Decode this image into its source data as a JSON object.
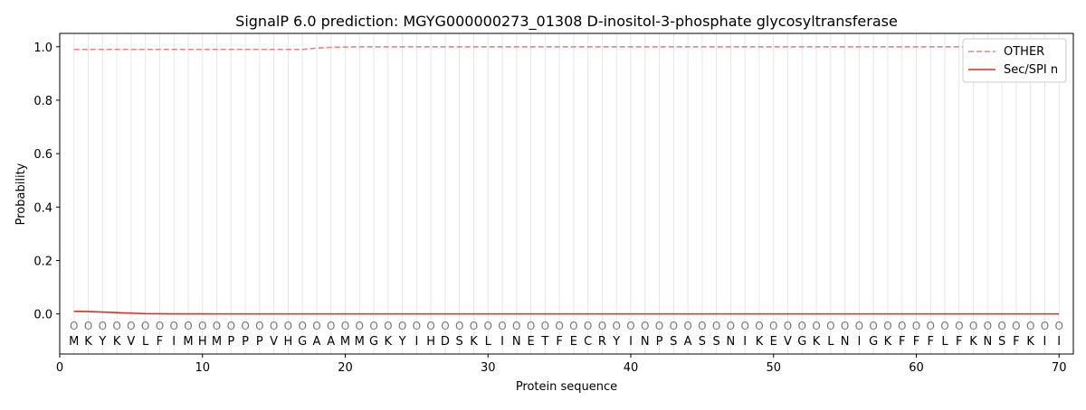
{
  "chart_data": {
    "type": "line",
    "title": "SignalP 6.0 prediction: MGYG000000273_01308 D-inositol-3-phosphate glycosyltransferase",
    "xlabel": "Protein sequence",
    "ylabel": "Probability",
    "xlim": [
      0,
      71
    ],
    "ylim": [
      -0.15,
      1.05
    ],
    "xticks": [
      0,
      10,
      20,
      30,
      40,
      50,
      60,
      70
    ],
    "yticks": [
      0.0,
      0.2,
      0.4,
      0.6,
      0.8,
      1.0
    ],
    "ytick_labels": [
      "0.0",
      "0.2",
      "0.4",
      "0.6",
      "0.8",
      "1.0"
    ],
    "grid": "vertical lines at each residue",
    "legend_position": "top-right",
    "sequence": [
      "M",
      "K",
      "Y",
      "K",
      "V",
      "L",
      "F",
      "I",
      "M",
      "H",
      "M",
      "P",
      "P",
      "P",
      "V",
      "H",
      "G",
      "A",
      "A",
      "M",
      "M",
      "G",
      "K",
      "Y",
      "I",
      "H",
      "D",
      "S",
      "K",
      "L",
      "I",
      "N",
      "E",
      "T",
      "F",
      "E",
      "C",
      "R",
      "Y",
      "I",
      "N",
      "P",
      "S",
      "A",
      "S",
      "S",
      "N",
      "I",
      "K",
      "E",
      "V",
      "G",
      "K",
      "L",
      "N",
      "I",
      "G",
      "K",
      "F",
      "F",
      "F",
      "L",
      "F",
      "K",
      "N",
      "S",
      "F",
      "K",
      "I",
      "I"
    ],
    "position_label": "O",
    "series": [
      {
        "name": "OTHER",
        "color": "#f08080",
        "style": "dashed",
        "values": [
          0.99,
          0.99,
          0.99,
          0.99,
          0.99,
          0.99,
          0.99,
          0.99,
          0.99,
          0.99,
          0.99,
          0.99,
          0.99,
          0.99,
          0.99,
          0.99,
          0.99,
          0.995,
          0.998,
          0.999,
          1.0,
          1.0,
          1.0,
          1.0,
          1.0,
          1.0,
          1.0,
          1.0,
          1.0,
          1.0,
          1.0,
          1.0,
          1.0,
          1.0,
          1.0,
          1.0,
          1.0,
          1.0,
          1.0,
          1.0,
          1.0,
          1.0,
          1.0,
          1.0,
          1.0,
          1.0,
          1.0,
          1.0,
          1.0,
          1.0,
          1.0,
          1.0,
          1.0,
          1.0,
          1.0,
          1.0,
          1.0,
          1.0,
          1.0,
          1.0,
          1.0,
          1.0,
          1.0,
          1.0,
          1.0,
          1.0,
          1.0,
          1.0,
          1.0,
          1.0
        ]
      },
      {
        "name": "Sec/SPI n",
        "color": "#e8281e",
        "style": "solid",
        "values": [
          0.01,
          0.009,
          0.007,
          0.005,
          0.003,
          0.001,
          0.0005,
          0.0003,
          0.0002,
          0.0001,
          0,
          0,
          0,
          0,
          0,
          0,
          0,
          0,
          0,
          0,
          0,
          0,
          0,
          0,
          0,
          0,
          0,
          0,
          0,
          0,
          0,
          0,
          0,
          0,
          0,
          0,
          0,
          0,
          0,
          0,
          0,
          0,
          0,
          0,
          0,
          0,
          0,
          0,
          0,
          0,
          0,
          0,
          0,
          0,
          0,
          0,
          0,
          0,
          0,
          0,
          0,
          0,
          0,
          0,
          0,
          0,
          0,
          0,
          0,
          0
        ]
      }
    ]
  }
}
